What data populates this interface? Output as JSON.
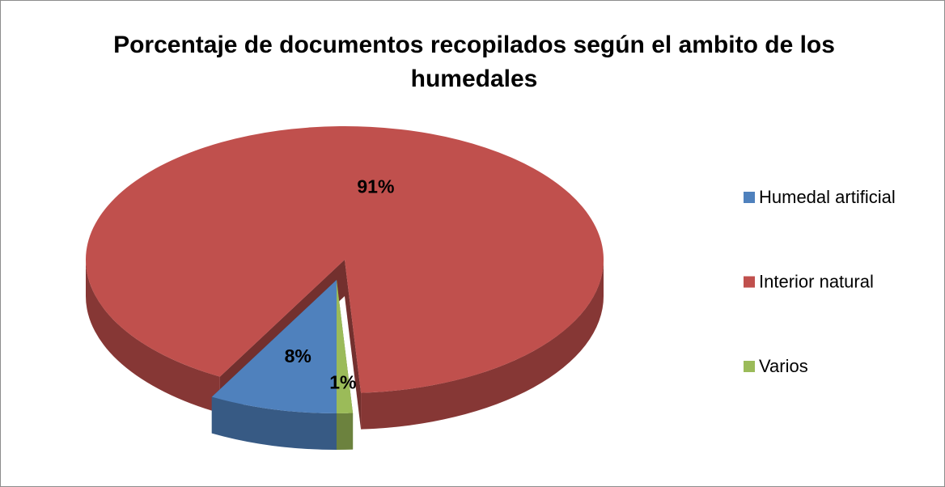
{
  "chart_data": {
    "type": "pie3d",
    "title": "Porcentaje de documentos recopilados según el ambito de los humedales",
    "categories": [
      "Humedal artificial",
      "Interior natural",
      "Varios"
    ],
    "values": [
      8,
      91,
      1
    ],
    "value_labels": [
      "8%",
      "91%",
      "1%"
    ],
    "colors": [
      "#4f81bd",
      "#c0504d",
      "#9bbb59"
    ],
    "legend": "right"
  }
}
